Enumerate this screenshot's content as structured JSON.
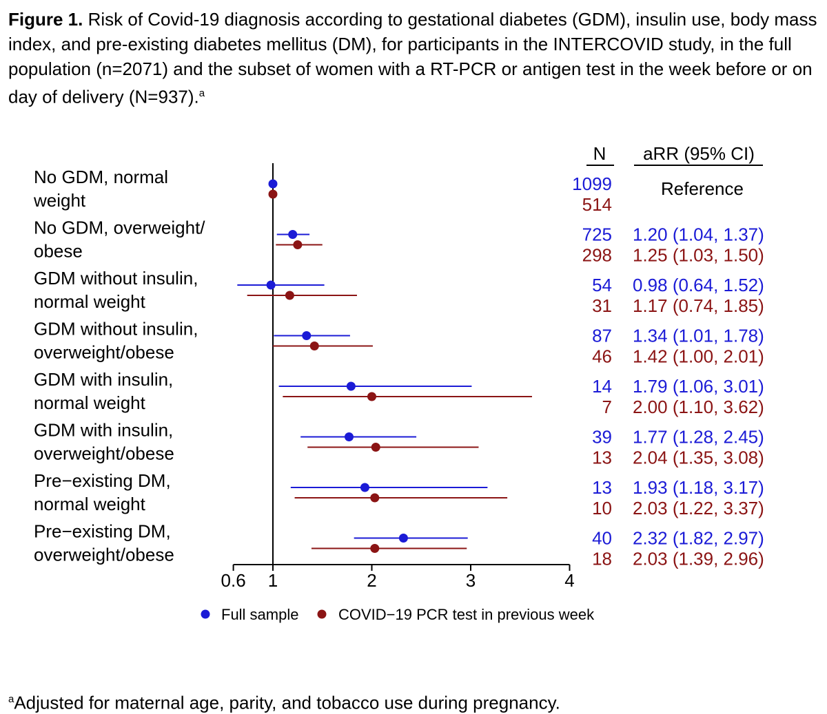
{
  "figure": {
    "label": "Figure 1.",
    "caption": "Risk of Covid-19 diagnosis according to gestational diabetes (GDM), insulin use, body mass index, and pre-existing diabetes mellitus (DM), for participants in the INTERCOVID study, in the full population (n=2071) and the subset of women with a RT-PCR or antigen test in the week before or on day of delivery (N=937).",
    "caption_marker": "a",
    "footnote_marker": "a",
    "footnote": "Adjusted for maternal age, parity, and tobacco use during pregnancy."
  },
  "colors": {
    "series1": "#1b1bd6",
    "series2": "#8b1414",
    "axis": "#000000"
  },
  "chart_data": {
    "type": "scatter",
    "subtype": "forest-plot",
    "x_scale": "linear",
    "xlim": [
      0.6,
      4
    ],
    "x_ticks": [
      0.6,
      1,
      2,
      3,
      4
    ],
    "x_tick_labels": [
      "0.6",
      "1",
      "2",
      "3",
      "4"
    ],
    "reference_line": 1,
    "header_n": "N",
    "header_est": "aRR (95% CI)",
    "series": [
      {
        "name": "Full sample",
        "color": "#1b1bd6"
      },
      {
        "name": "COVID−19 PCR test in previous week",
        "color": "#8b1414"
      }
    ],
    "legend_position": "bottom",
    "rows": [
      {
        "label1": "No GDM, normal",
        "label2": "weight",
        "reference": true,
        "ref_label": "Reference",
        "values": [
          {
            "n": "1099",
            "est": 1.0,
            "lo": null,
            "hi": null,
            "text": ""
          },
          {
            "n": "514",
            "est": 1.0,
            "lo": null,
            "hi": null,
            "text": ""
          }
        ]
      },
      {
        "label1": "No GDM, overweight/",
        "label2": "obese",
        "values": [
          {
            "n": "725",
            "est": 1.2,
            "lo": 1.04,
            "hi": 1.37,
            "text": "1.20 (1.04, 1.37)"
          },
          {
            "n": "298",
            "est": 1.25,
            "lo": 1.03,
            "hi": 1.5,
            "text": "1.25 (1.03, 1.50)"
          }
        ]
      },
      {
        "label1": "GDM without insulin,",
        "label2": "normal weight",
        "values": [
          {
            "n": "54",
            "est": 0.98,
            "lo": 0.64,
            "hi": 1.52,
            "text": "0.98 (0.64, 1.52)"
          },
          {
            "n": "31",
            "est": 1.17,
            "lo": 0.74,
            "hi": 1.85,
            "text": "1.17 (0.74, 1.85)"
          }
        ]
      },
      {
        "label1": "GDM without insulin,",
        "label2": "overweight/obese",
        "values": [
          {
            "n": "87",
            "est": 1.34,
            "lo": 1.01,
            "hi": 1.78,
            "text": "1.34 (1.01, 1.78)"
          },
          {
            "n": "46",
            "est": 1.42,
            "lo": 1.0,
            "hi": 2.01,
            "text": "1.42 (1.00, 2.01)"
          }
        ]
      },
      {
        "label1": "GDM with insulin,",
        "label2": "normal weight",
        "values": [
          {
            "n": "14",
            "est": 1.79,
            "lo": 1.06,
            "hi": 3.01,
            "text": "1.79 (1.06, 3.01)"
          },
          {
            "n": "7",
            "est": 2.0,
            "lo": 1.1,
            "hi": 3.62,
            "text": "2.00 (1.10, 3.62)"
          }
        ]
      },
      {
        "label1": "GDM with insulin,",
        "label2": "overweight/obese",
        "values": [
          {
            "n": "39",
            "est": 1.77,
            "lo": 1.28,
            "hi": 2.45,
            "text": "1.77 (1.28, 2.45)"
          },
          {
            "n": "13",
            "est": 2.04,
            "lo": 1.35,
            "hi": 3.08,
            "text": "2.04 (1.35, 3.08)"
          }
        ]
      },
      {
        "label1": "Pre−existing DM,",
        "label2": "normal weight",
        "values": [
          {
            "n": "13",
            "est": 1.93,
            "lo": 1.18,
            "hi": 3.17,
            "text": "1.93 (1.18, 3.17)"
          },
          {
            "n": "10",
            "est": 2.03,
            "lo": 1.22,
            "hi": 3.37,
            "text": "2.03 (1.22, 3.37)"
          }
        ]
      },
      {
        "label1": "Pre−existing DM,",
        "label2": "overweight/obese",
        "values": [
          {
            "n": "40",
            "est": 2.32,
            "lo": 1.82,
            "hi": 2.97,
            "text": "2.32 (1.82, 2.97)"
          },
          {
            "n": "18",
            "est": 2.03,
            "lo": 1.39,
            "hi": 2.96,
            "text": "2.03 (1.39, 2.96)"
          }
        ]
      }
    ]
  }
}
